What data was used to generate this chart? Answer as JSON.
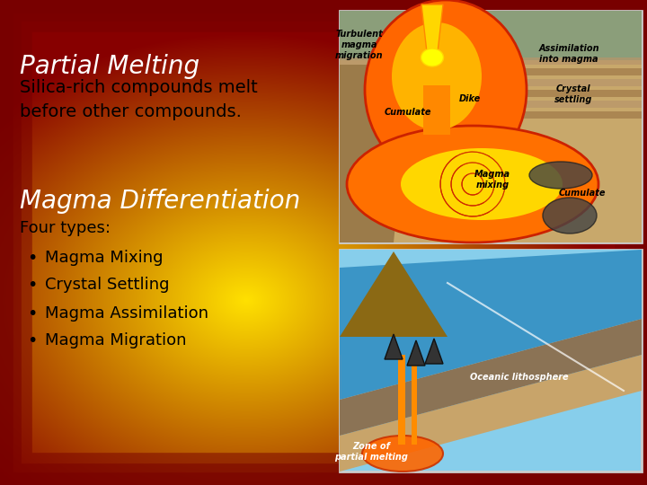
{
  "title": "Partial Melting",
  "subtitle": "Silica-rich compounds melt\nbefore other compounds.",
  "section2_title": "Magma Differentiation",
  "section2_intro": "Four types:",
  "bullet_points": [
    "Magma Mixing",
    "Crystal Settling",
    "Magma Assimilation",
    "Magma Migration"
  ],
  "title_color": "#FFFFFF",
  "subtitle_color": "#000000",
  "section2_title_color": "#FFFFFF",
  "body_text_color": "#000000",
  "title_fontsize": 20,
  "subtitle_fontsize": 14,
  "section2_title_fontsize": 20,
  "body_fontsize": 13,
  "bg_center_color": "#FFD700",
  "bg_edge_color": "#880000",
  "img_top_label1": "Turbulent\nmagma\nmigration",
  "img_top_label2": "Assimilation\ninto magma",
  "img_top_label3": "Crystal\nsettling",
  "img_top_label4": "Cumulate",
  "img_top_label5": "Dike",
  "img_top_label6": "Magma\nmixing",
  "img_top_label7": "Cumulate",
  "img_bot_label1": "Oceanic lithosphere",
  "img_bot_label2": "Zone of\npartial melting"
}
